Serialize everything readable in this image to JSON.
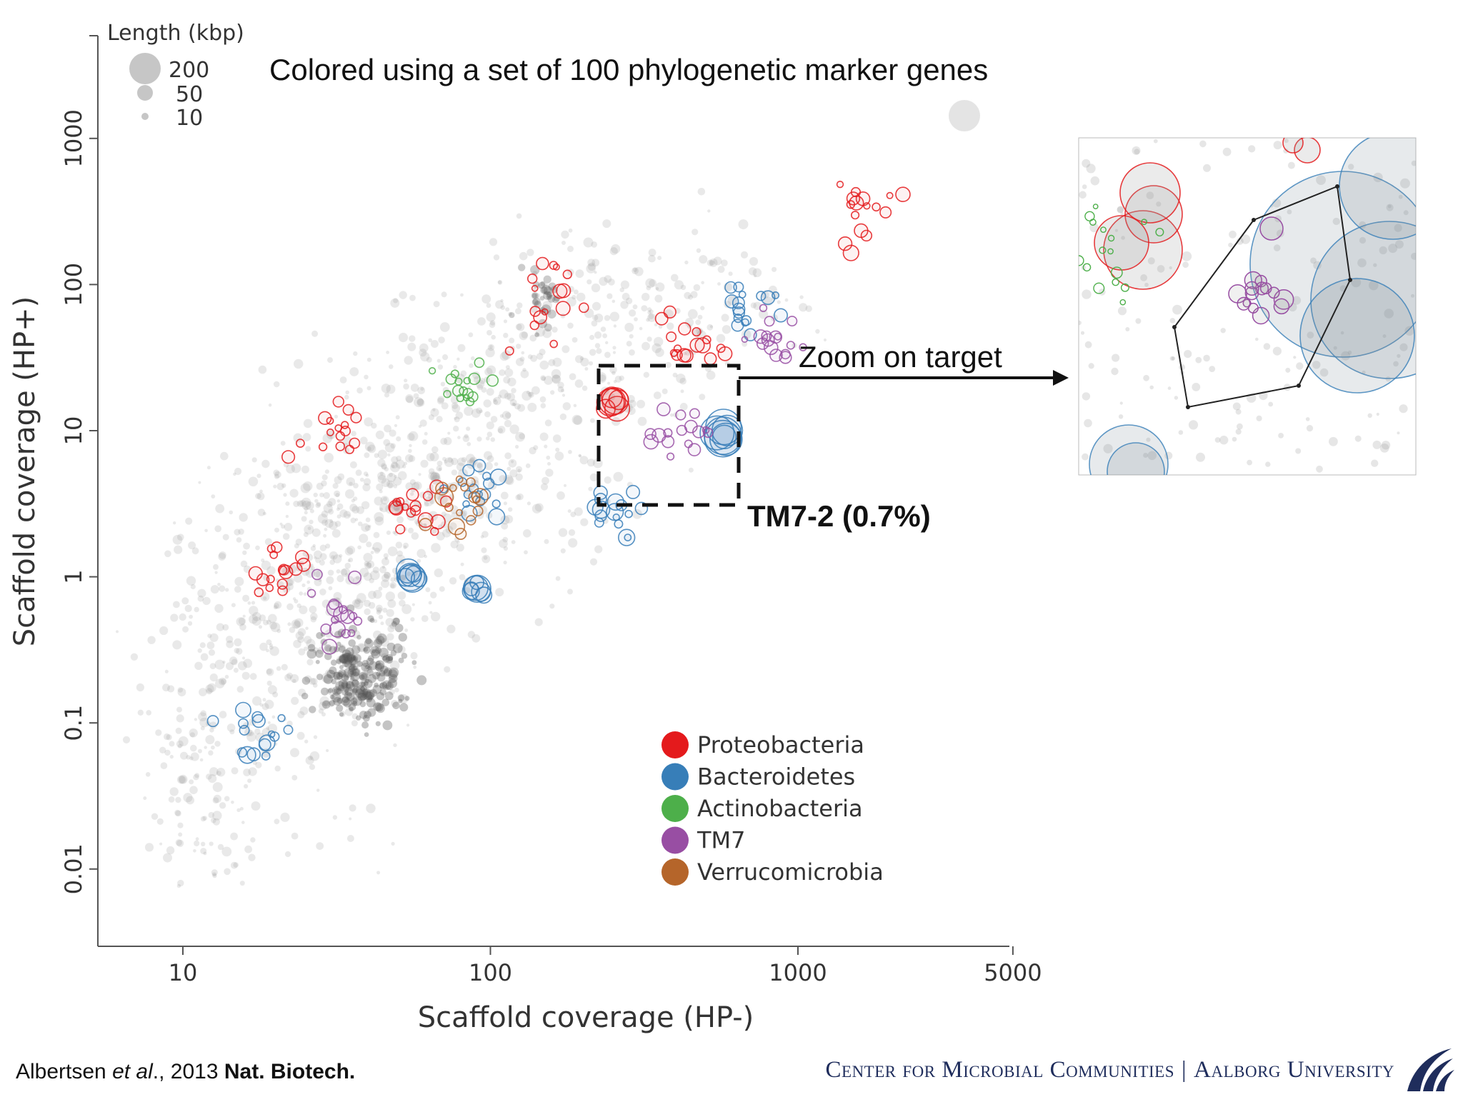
{
  "slide": {
    "subtitle": "Colored using a set of 100 phylogenetic marker genes",
    "zoom_label": "Zoom on target",
    "target_label": "TM7-2 (0.7%)",
    "citation": {
      "author": "Albertsen ",
      "etal": "et al",
      "year": "., 2013 ",
      "journal": "Nat. Biotech."
    },
    "institution_left": "Center for Microbial Communities",
    "institution_sep": "|",
    "institution_right": "Aalborg University",
    "logo_icon": "aalborg-wave-logo-icon"
  },
  "chart_data": {
    "type": "scatter",
    "xlabel": "Scaffold coverage (HP-)",
    "ylabel": "Scaffold coverage (HP+)",
    "x_scale": "log",
    "y_scale": "log",
    "xlim": [
      5,
      5000
    ],
    "ylim": [
      0.003,
      5000
    ],
    "x_ticks": [
      10,
      100,
      1000,
      5000
    ],
    "x_tick_labels": [
      "10",
      "100",
      "1000",
      "5000"
    ],
    "y_ticks": [
      0.01,
      0.1,
      1,
      10,
      100,
      1000
    ],
    "y_tick_labels": [
      "0.01",
      "0.1",
      "1",
      "10",
      "100",
      "1000"
    ],
    "size_legend": {
      "title": "Length (kbp)",
      "entries": [
        {
          "label": "200",
          "value": 200
        },
        {
          "label": "50",
          "value": 50
        },
        {
          "label": "10",
          "value": 10
        }
      ]
    },
    "legend": {
      "placement": "bottom-center",
      "entries": [
        {
          "name": "Proteobacteria",
          "color": "#e41a1c"
        },
        {
          "name": "Bacteroidetes",
          "color": "#377eb8"
        },
        {
          "name": "Actinobacteria",
          "color": "#4daf4a"
        },
        {
          "name": "TM7",
          "color": "#984ea3"
        },
        {
          "name": "Verrucomicrobia",
          "color": "#b5652a"
        }
      ]
    },
    "clusters": [
      {
        "phylum": "Proteobacteria",
        "x": 1600,
        "y": 300,
        "length_kbp": 20
      },
      {
        "phylum": "Proteobacteria",
        "x": 150,
        "y": 80,
        "length_kbp": 15
      },
      {
        "phylum": "Proteobacteria",
        "x": 30,
        "y": 10,
        "length_kbp": 15
      },
      {
        "phylum": "Proteobacteria",
        "x": 440,
        "y": 40,
        "length_kbp": 20
      },
      {
        "phylum": "Proteobacteria",
        "x": 250,
        "y": 15,
        "length_kbp": 100
      },
      {
        "phylum": "Proteobacteria",
        "x": 55,
        "y": 3,
        "length_kbp": 15
      },
      {
        "phylum": "Proteobacteria",
        "x": 20,
        "y": 1.2,
        "length_kbp": 10
      },
      {
        "phylum": "Bacteroidetes",
        "x": 550,
        "y": 10,
        "length_kbp": 200
      },
      {
        "phylum": "Bacteroidetes",
        "x": 250,
        "y": 2.8,
        "length_kbp": 30
      },
      {
        "phylum": "Bacteroidetes",
        "x": 90,
        "y": 0.8,
        "length_kbp": 100
      },
      {
        "phylum": "Bacteroidetes",
        "x": 55,
        "y": 1,
        "length_kbp": 100
      },
      {
        "phylum": "Bacteroidetes",
        "x": 90,
        "y": 3.5,
        "length_kbp": 30
      },
      {
        "phylum": "Bacteroidetes",
        "x": 17,
        "y": 0.08,
        "length_kbp": 30
      },
      {
        "phylum": "Bacteroidetes",
        "x": 650,
        "y": 70,
        "length_kbp": 10
      },
      {
        "phylum": "TM7",
        "x": 400,
        "y": 10,
        "length_kbp": 15
      },
      {
        "phylum": "TM7",
        "x": 33,
        "y": 0.5,
        "length_kbp": 20
      },
      {
        "phylum": "TM7",
        "x": 850,
        "y": 42,
        "length_kbp": 10
      },
      {
        "phylum": "Verrucomicrobia",
        "x": 75,
        "y": 3,
        "length_kbp": 40
      },
      {
        "phylum": "Actinobacteria",
        "x": 85,
        "y": 20,
        "length_kbp": 5
      }
    ],
    "target_box": {
      "x_range": [
        240,
        650
      ],
      "y_range": [
        3,
        25
      ],
      "label": "TM7-2 (0.7%)"
    }
  }
}
